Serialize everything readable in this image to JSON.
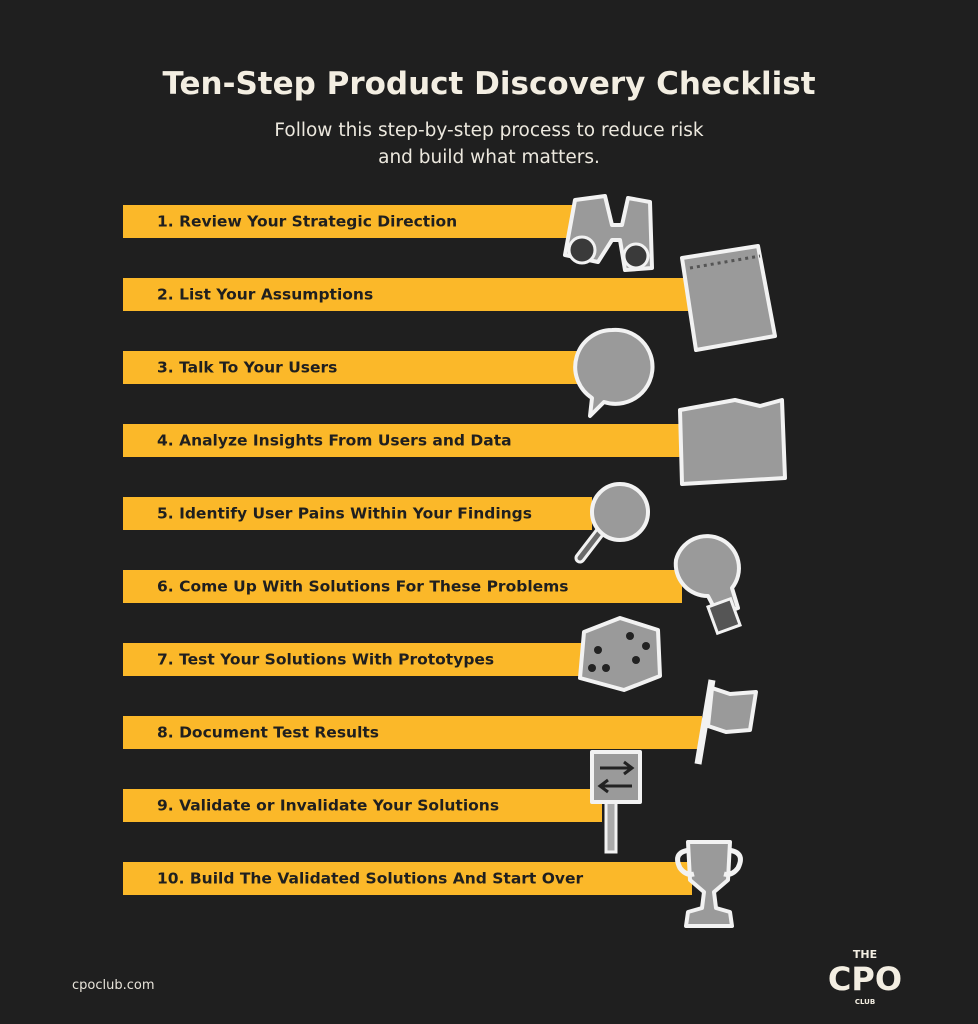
{
  "header": {
    "title": "Ten-Step Product Discovery Checklist",
    "subtitle_lines": [
      "Follow this step-by-step process to reduce risk",
      "and build what matters."
    ]
  },
  "steps": [
    "1. Review Your Strategic Direction",
    "2. List Your Assumptions",
    "3. Talk To Your Users",
    "4. Analyze Insights From Users and Data",
    "5. Identify User Pains Within Your Findings",
    "6. Come Up With Solutions For These Problems",
    "7. Test Your Solutions With Prototypes",
    "8. Document Test Results",
    "9. Validate or Invalidate Your Solutions",
    "10. Build The Validated Solutions And Start Over"
  ],
  "footer": {
    "url": "cpoclub.com",
    "logo": {
      "top": "THE",
      "main": "CPO",
      "bottom": "CLUB"
    }
  }
}
